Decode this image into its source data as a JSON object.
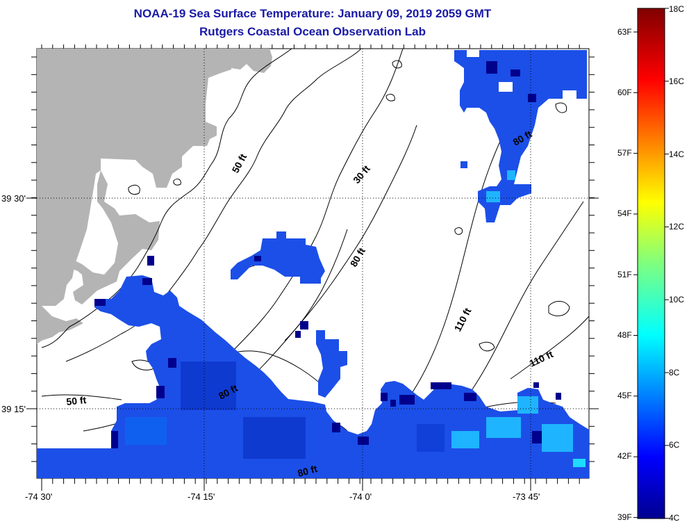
{
  "header": {
    "title": "NOAA-19 Sea Surface Temperature:  January 09, 2019 2059 GMT",
    "subtitle": "Rutgers Coastal Ocean Observation Lab"
  },
  "axes": {
    "x_ticks": [
      "-74 30'",
      "-74 15'",
      "-74 0'",
      "-73 45'"
    ],
    "y_ticks": [
      "39 30'",
      "39 15'"
    ]
  },
  "contours": {
    "labels": [
      "50 ft",
      "30 ft",
      "80 ft",
      "80 ft",
      "110 ft",
      "110 ft",
      "50 ft",
      "80 ft",
      "80 ft"
    ]
  },
  "colorbar": {
    "fahrenheit": [
      "63F",
      "60F",
      "57F",
      "54F",
      "51F",
      "48F",
      "45F",
      "42F",
      "39F"
    ],
    "celsius": [
      "18C",
      "16C",
      "14C",
      "12C",
      "10C",
      "8C",
      "6C",
      "4C"
    ],
    "range_c": [
      4,
      18
    ]
  },
  "colors": {
    "land": "#b4b4b4",
    "title": "#1a1aa6",
    "sst_cold": "#00008c",
    "sst_mid": "#1f5fff"
  }
}
